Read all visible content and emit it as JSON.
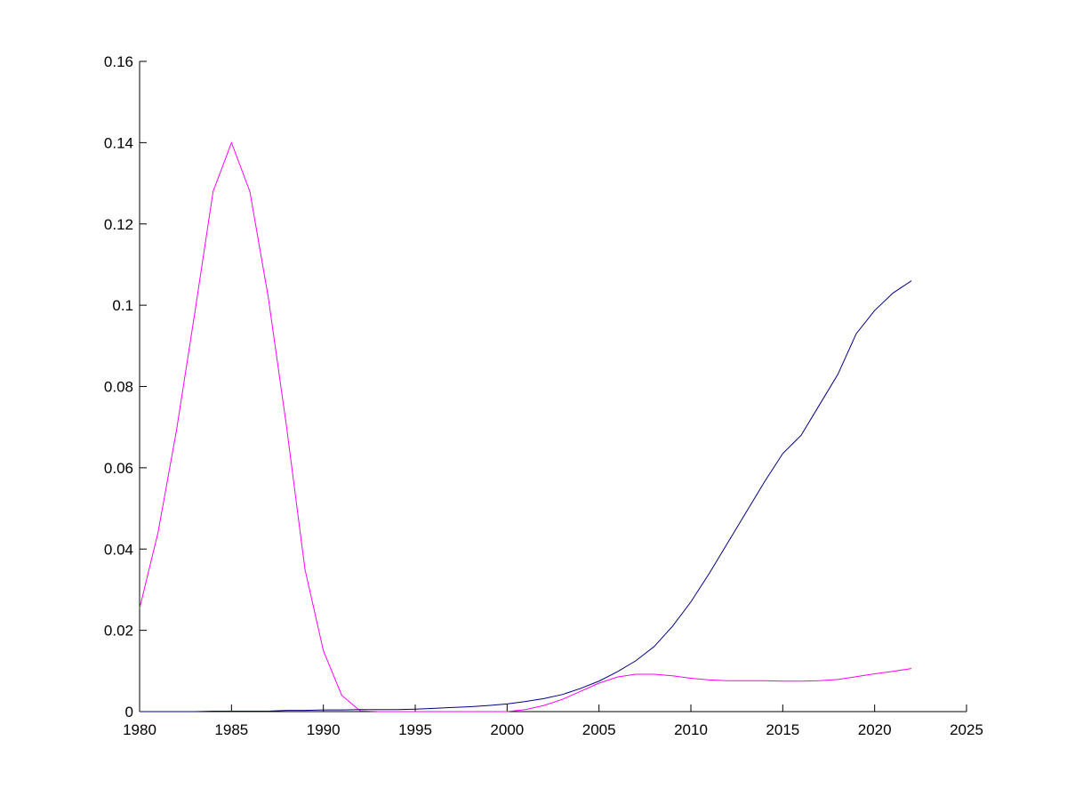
{
  "chart_data": {
    "type": "line",
    "x": [
      1980,
      1981,
      1982,
      1983,
      1984,
      1985,
      1986,
      1987,
      1988,
      1989,
      1990,
      1991,
      1992,
      1993,
      1994,
      1995,
      1996,
      1997,
      1998,
      1999,
      2000,
      2001,
      2002,
      2003,
      2004,
      2005,
      2006,
      2007,
      2008,
      2009,
      2010,
      2011,
      2012,
      2013,
      2014,
      2015,
      2016,
      2017,
      2018,
      2019,
      2020,
      2021,
      2022
    ],
    "series": [
      {
        "color": "#ff00ff",
        "values": [
          0.0254,
          0.044,
          0.069,
          0.098,
          0.128,
          0.14,
          0.128,
          0.102,
          0.07,
          0.035,
          0.015,
          0.004,
          0.0002,
          0,
          0,
          0,
          0,
          0,
          0,
          0,
          0,
          0.0005,
          0.0015,
          0.003,
          0.005,
          0.007,
          0.0085,
          0.0092,
          0.0092,
          0.0088,
          0.0082,
          0.0078,
          0.0076,
          0.0076,
          0.0076,
          0.0075,
          0.0075,
          0.0076,
          0.0079,
          0.0086,
          0.0093,
          0.0099,
          0.0106
        ]
      },
      {
        "color": "#000080",
        "values": [
          0,
          0,
          0,
          0,
          0.0001,
          0.0001,
          0.0001,
          0.0001,
          0.0003,
          0.0003,
          0.0004,
          0.0004,
          0.0005,
          0.0005,
          0.0005,
          0.0006,
          0.0008,
          0.001,
          0.0012,
          0.0015,
          0.0019,
          0.0025,
          0.0032,
          0.0042,
          0.0057,
          0.0075,
          0.0098,
          0.0125,
          0.016,
          0.021,
          0.027,
          0.034,
          0.0415,
          0.049,
          0.0565,
          0.0635,
          0.068,
          0.0755,
          0.083,
          0.093,
          0.0987,
          0.103,
          0.106
        ]
      }
    ],
    "xlim": [
      1980,
      2025
    ],
    "xticks": [
      1980,
      1985,
      1990,
      1995,
      2000,
      2005,
      2010,
      2015,
      2020,
      2025
    ],
    "ylim": [
      0,
      0.16
    ],
    "yticks": [
      0,
      0.02,
      0.04,
      0.06,
      0.08,
      0.1,
      0.12,
      0.14,
      0.16
    ]
  }
}
